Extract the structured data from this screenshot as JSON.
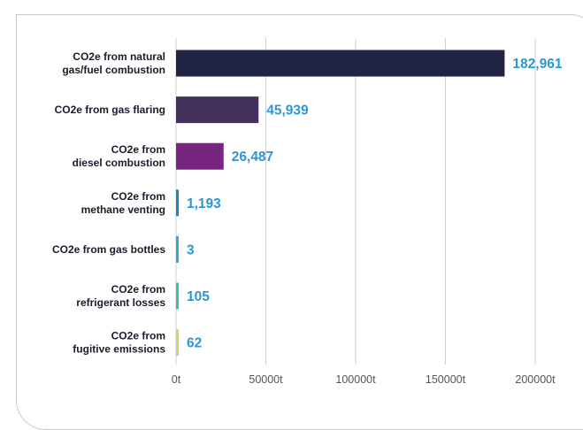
{
  "chart_data": {
    "type": "bar",
    "orientation": "horizontal",
    "categories": [
      [
        "CO2e from natural",
        "gas/fuel combustion"
      ],
      [
        "CO2e from gas flaring"
      ],
      [
        "CO2e from",
        "diesel combustion"
      ],
      [
        "CO2e from",
        "methane venting"
      ],
      [
        "CO2e from gas bottles"
      ],
      [
        "CO2e from",
        "refrigerant losses"
      ],
      [
        "CO2e from",
        "fugitive emissions"
      ]
    ],
    "values": [
      182961,
      45939,
      26487,
      1193,
      3,
      105,
      62
    ],
    "value_labels": [
      "182,961",
      "45,939",
      "26,487",
      "1,193",
      "3",
      "105",
      "62"
    ],
    "bar_colors": [
      "#202341",
      "#44305d",
      "#77267f",
      "#1f86c4",
      "#33a9d6",
      "#3fbf9f",
      "#c6d86a"
    ],
    "xlim": [
      0,
      200000
    ],
    "xticks": [
      0,
      50000,
      100000,
      150000,
      200000
    ],
    "xtick_labels": [
      "0t",
      "50000t",
      "100000t",
      "150000t",
      "200000t"
    ],
    "grid": "vertical",
    "title": "",
    "xlabel": "",
    "ylabel": ""
  }
}
